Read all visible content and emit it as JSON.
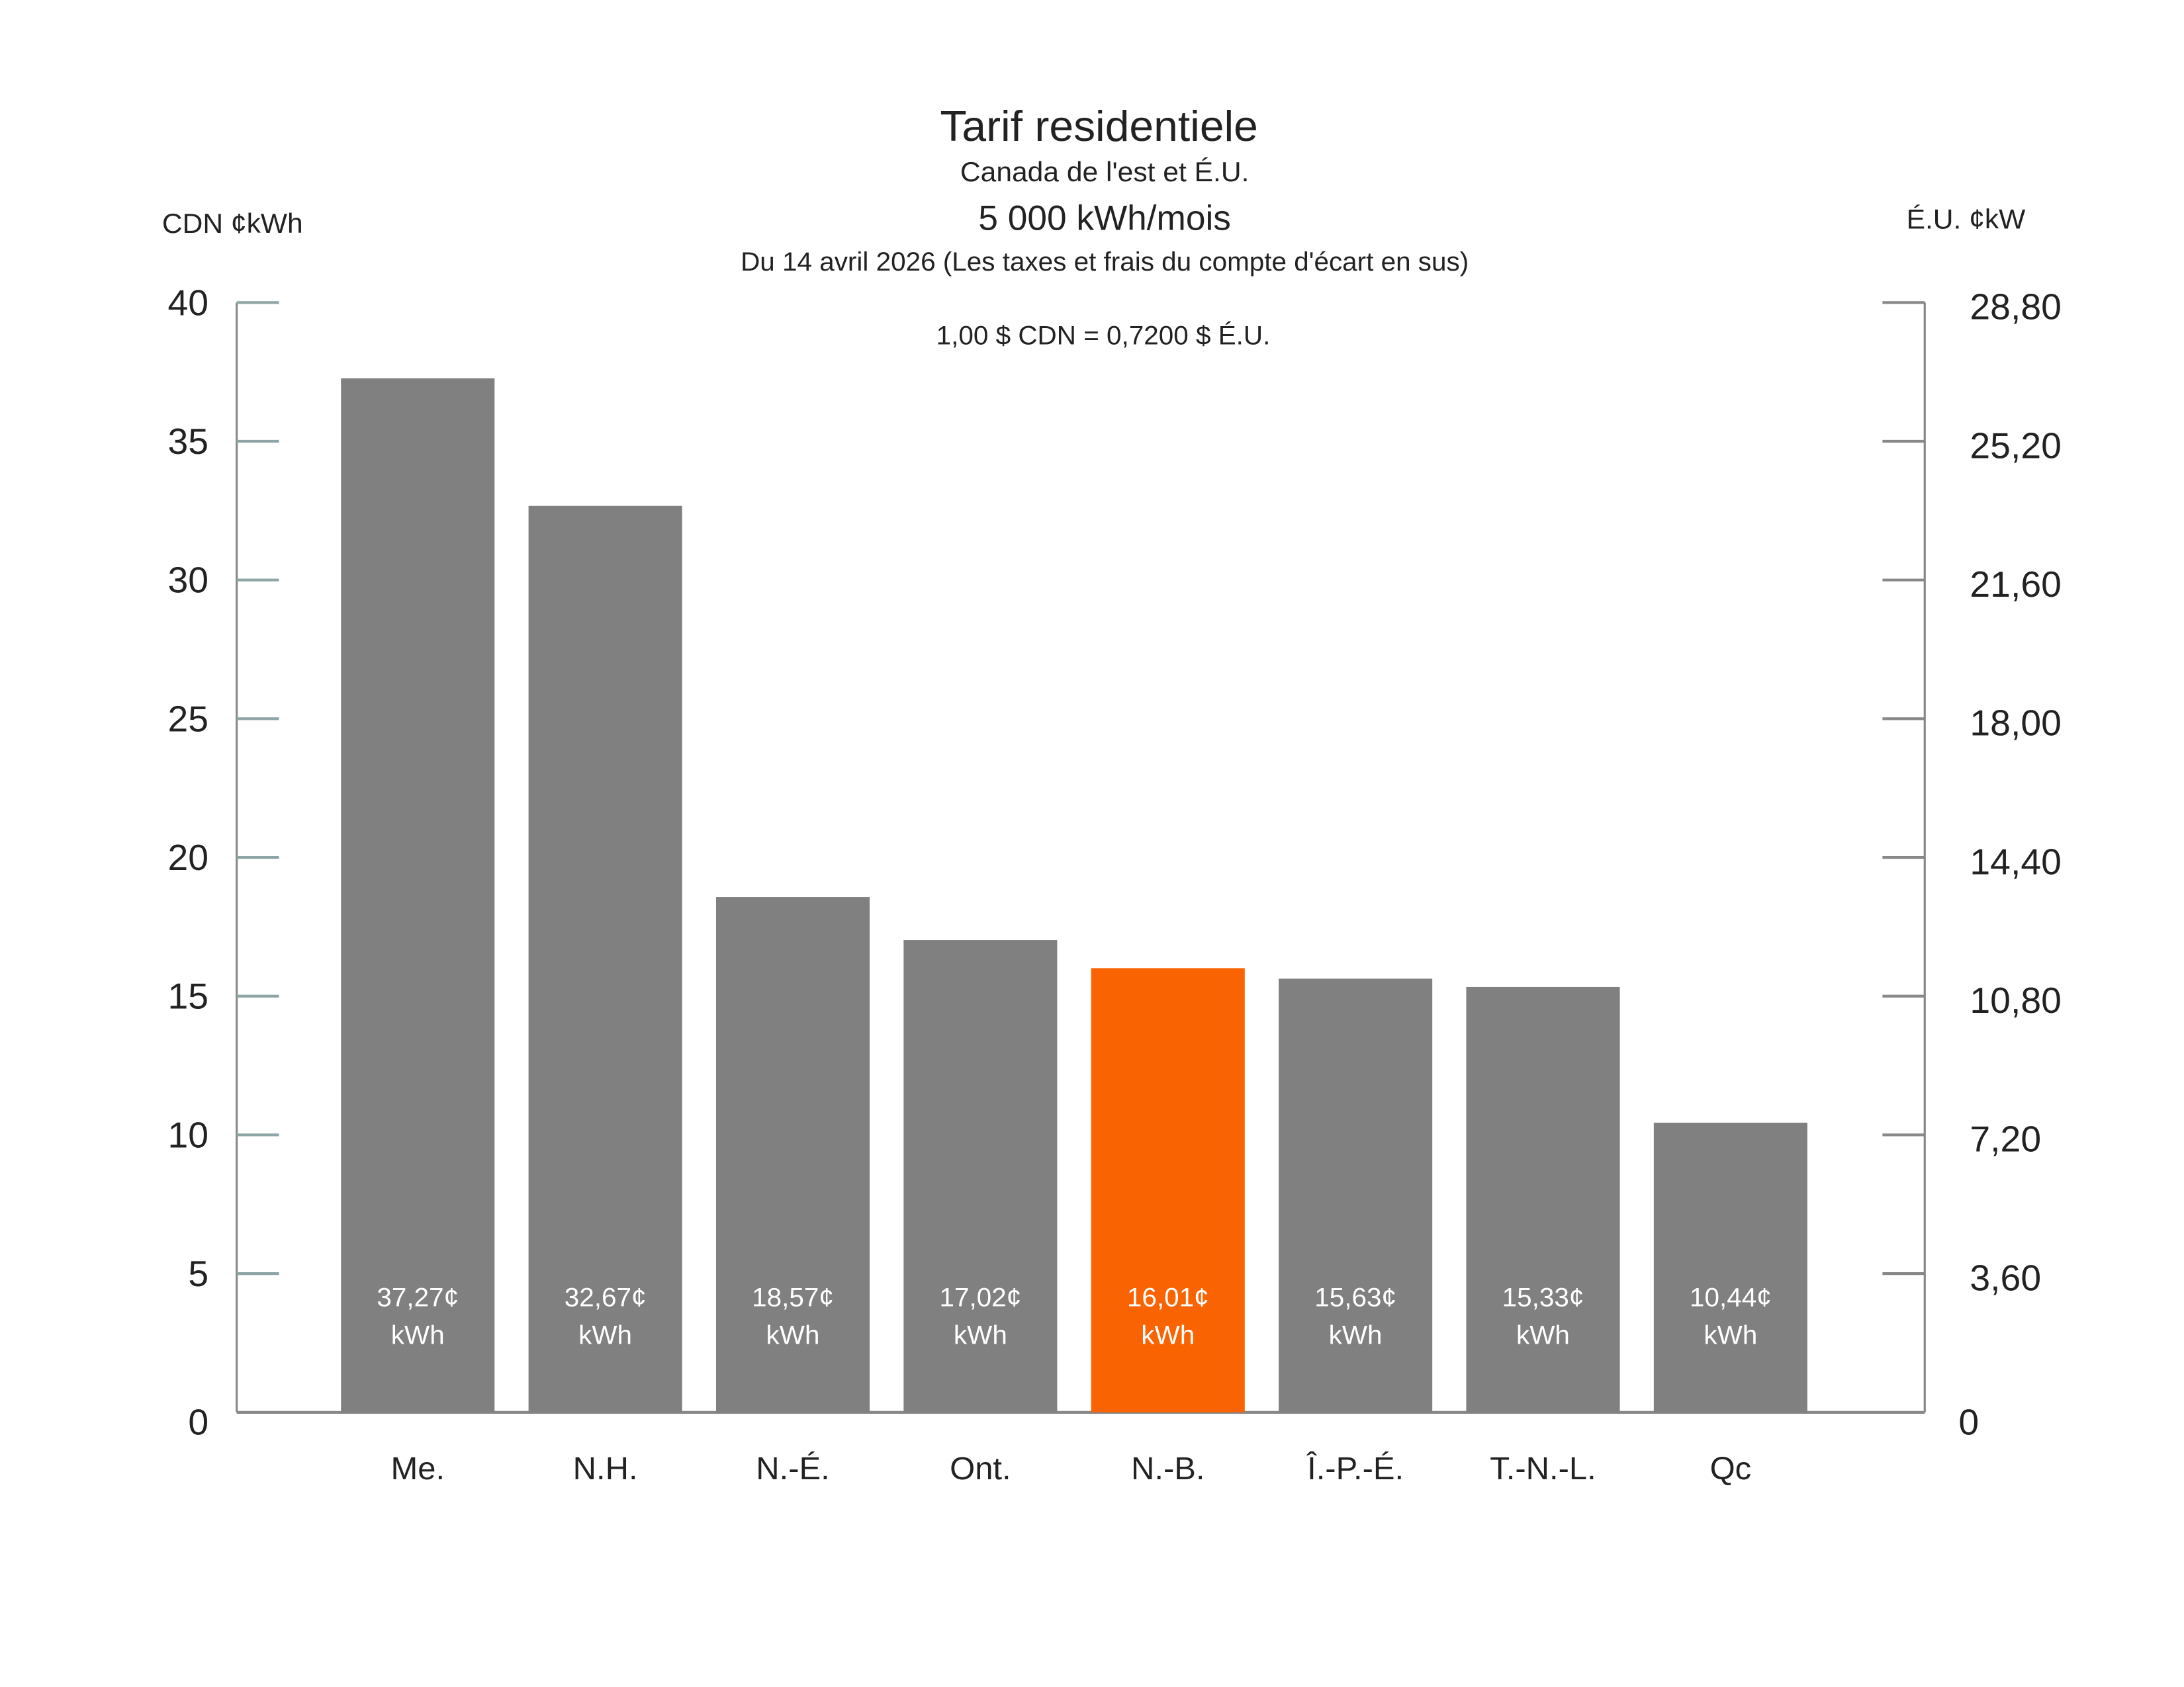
{
  "chart_data": {
    "type": "bar",
    "title": "Tarif residentiele",
    "subtitle": "Canada de l'est et É.U.",
    "subtitle2": "5 000 kWh/mois",
    "subtitle3": "Du 14 avril 2026 (Les taxes et frais du compte d'écart en sus)",
    "annotation": "1,00 $ CDN = 0,7200 $ É.U.",
    "ylabel_left": "CDN ¢kWh",
    "ylabel_right": "É.U. ¢kW",
    "ylim": [
      0,
      40
    ],
    "left_ticks": [
      "0",
      "5",
      "10",
      "15",
      "20",
      "25",
      "30",
      "35",
      "40"
    ],
    "left_tick_values": [
      0,
      5,
      10,
      15,
      20,
      25,
      30,
      35,
      40
    ],
    "right_ticks": [
      "0",
      "3,60",
      "7,20",
      "10,80",
      "14,40",
      "18,00",
      "21,60",
      "25,20",
      "28,80"
    ],
    "right_tick_values": [
      0,
      3.6,
      7.2,
      10.8,
      14.4,
      18.0,
      21.6,
      25.2,
      28.8
    ],
    "exchange_rate": 0.72,
    "categories": [
      "Me.",
      "N.H.",
      "N.-É.",
      "Ont.",
      "N.-B.",
      "Î.-P.-É.",
      "T.-N.-L.",
      "Qc"
    ],
    "values": [
      37.27,
      32.67,
      18.57,
      17.02,
      16.01,
      15.63,
      15.33,
      10.44
    ],
    "data_labels": [
      "37,27¢",
      "32,67¢",
      "18,57¢",
      "17,02¢",
      "16,01¢",
      "15,63¢",
      "15,33¢",
      "10,44¢"
    ],
    "data_label_unit": "kWh",
    "highlight_index": 4,
    "colors": {
      "bar": "#808080",
      "highlight": "#F96302",
      "axis": "#888888",
      "left_tick": "#8FA5A5"
    },
    "grid": false,
    "legend": "none"
  }
}
